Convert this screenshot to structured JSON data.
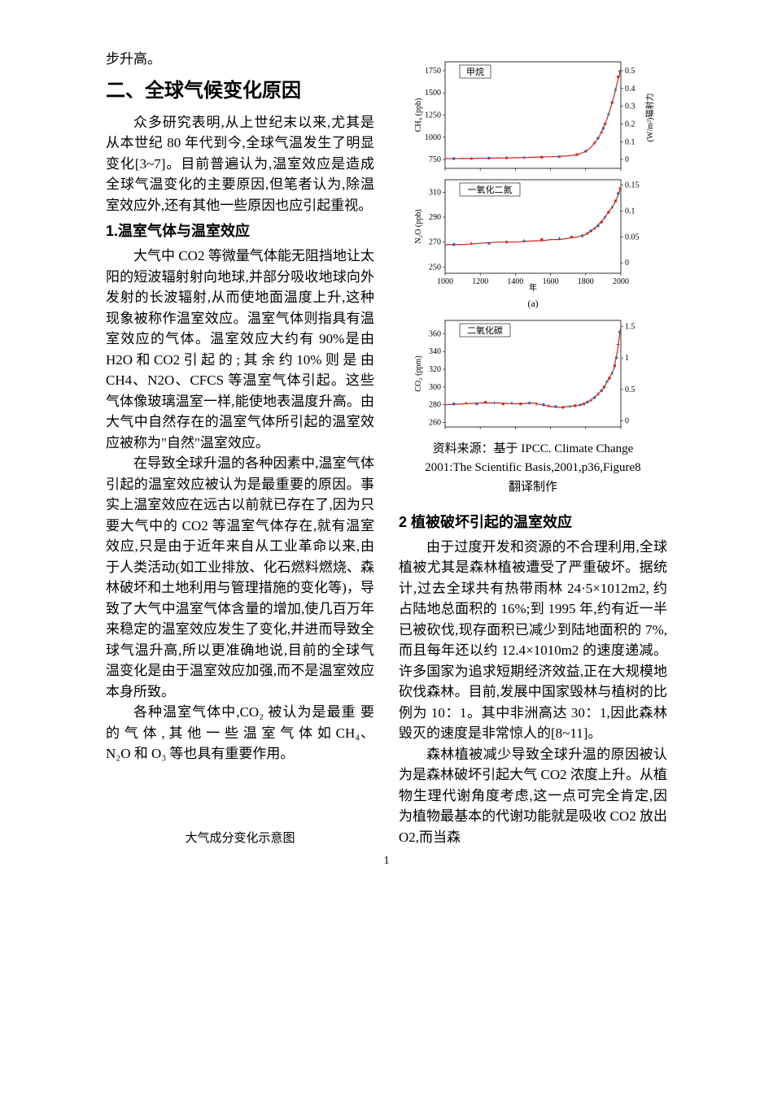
{
  "left_column": {
    "continuation": "步升高。",
    "section_title": "二、全球气候变化原因",
    "intro_para": "众多研究表明,从上世纪末以来,尤其是从本世纪 80 年代到今,全球气温发生了明显变化[3~7]。目前普遍认为,温室效应是造成全球气温变化的主要原因,但笔者认为,除温室效应外,还有其他一些原因也应引起重视。",
    "subsection1": "1.温室气体与温室效应",
    "para1a": "大气中 CO2 等微量气体能无阻挡地让太阳的短波辐射射向地球,并部分吸收地球向外发射的长波辐射,从而使地面温度上升,这种现象被称作温室效应。温室气体则指具有温室效应的气体。温室效应大约有 90%是由 H2O 和 CO2 引 起 的 ; 其 余 约 10% 则 是 由 CH4、N2O、CFCS 等温室气体引起。这些气体像玻璃温室一样,能使地表温度升高。由大气中自然存在的温室气体所引起的温室效应被称为\"自然\"温室效应。",
    "para1b": "在导致全球升温的各种因素中,温室气体引起的温室效应被认为是最重要的原因。事实上温室效应在远古以前就已存在了,因为只要大气中的 CO2 等温室气体存在,就有温室效应,只是由于近年来自从工业革命以来,由于人类活动(如工业排放、化石燃料燃烧、森林破坏和土地利用与管理措施的变化等)，导致了大气中温室气体含量的增加,使几百万年来稳定的温室效应发生了变化,并进而导致全球气温升高,所以更准确地说,目前的全球气温变化是由于温室效应加强,而不是温室效应本身所致。",
    "para1c": "各种温室气体中,CO₂ 被认为是最重 要 的 气 体 , 其 他 一 些 温 室 气 体 如 CH₄、N₂O 和 O₃ 等也具有重要作用。",
    "fig_caption_left": "大气成分变化示意图"
  },
  "right_column": {
    "fig_source_line1": "资料来源：基于 IPCC. Climate Change",
    "fig_source_line2": "2001:The Scientific Basis,2001,p36,Figure8",
    "fig_source_line3": "翻译制作",
    "subsection2": "2 植被破坏引起的温室效应",
    "para2a": "由于过度开发和资源的不合理利用,全球植被尤其是森林植被遭受了严重破坏。据统计,过去全球共有热带雨林 24·5×1012m2, 约占陆地总面积的 16%;到 1995 年,约有近一半已被砍伐,现存面积已减少到陆地面积的 7%,而且每年还以约 12.4×1010m2 的速度递减。许多国家为追求短期经济效益,正在大规模地砍伐森林。目前,发展中国家毁林与植树的比例为 10：1。其中非洲高达 30：1,因此森林毁灭的速度是非常惊人的[8~11]。",
    "para2b": "森林植被减少导致全球升温的原因被认为是森林破坏引起大气 CO2 浓度上升。从植物生理代谢角度考虑,这一点可完全肯定,因为植物最基本的代谢功能就是吸收 CO2 放出 O2,而当森"
  },
  "charts": {
    "x_domain": [
      1000,
      2000
    ],
    "x_ticks": [
      1000,
      1200,
      1400,
      1600,
      1800,
      2000
    ],
    "x_label": "年",
    "panel_a_label": "(a)",
    "methane": {
      "legend": "甲烷",
      "y_label": "CH₄ (ppb)",
      "y_ticks_left": [
        750,
        1000,
        1250,
        1500,
        1750
      ],
      "y_domain_left": [
        650,
        1850
      ],
      "y2_label": "辐射力",
      "y2_unit": "(W/m²)",
      "y_ticks_right": [
        0.0,
        0.1,
        0.2,
        0.3,
        0.4,
        0.5
      ],
      "y_domain_right": [
        -0.05,
        0.55
      ],
      "baseline": 760,
      "data": [
        [
          1000,
          760
        ],
        [
          1050,
          758
        ],
        [
          1100,
          762
        ],
        [
          1150,
          760
        ],
        [
          1200,
          765
        ],
        [
          1250,
          763
        ],
        [
          1300,
          768
        ],
        [
          1350,
          765
        ],
        [
          1400,
          770
        ],
        [
          1450,
          772
        ],
        [
          1500,
          775
        ],
        [
          1550,
          778
        ],
        [
          1600,
          780
        ],
        [
          1650,
          785
        ],
        [
          1700,
          790
        ],
        [
          1720,
          795
        ],
        [
          1740,
          800
        ],
        [
          1760,
          810
        ],
        [
          1780,
          825
        ],
        [
          1800,
          840
        ],
        [
          1820,
          870
        ],
        [
          1840,
          910
        ],
        [
          1860,
          960
        ],
        [
          1880,
          1020
        ],
        [
          1900,
          1100
        ],
        [
          1920,
          1200
        ],
        [
          1940,
          1320
        ],
        [
          1960,
          1450
        ],
        [
          1980,
          1620
        ],
        [
          2000,
          1760
        ]
      ],
      "markers": [
        [
          1050,
          760
        ],
        [
          1150,
          762
        ],
        [
          1250,
          765
        ],
        [
          1350,
          768
        ],
        [
          1450,
          770
        ],
        [
          1550,
          776
        ],
        [
          1650,
          783
        ],
        [
          1750,
          805
        ],
        [
          1800,
          842
        ],
        [
          1850,
          935
        ],
        [
          1870,
          990
        ],
        [
          1890,
          1060
        ],
        [
          1900,
          1100
        ],
        [
          1910,
          1150
        ],
        [
          1930,
          1260
        ],
        [
          1950,
          1390
        ],
        [
          1970,
          1540
        ],
        [
          1985,
          1680
        ],
        [
          1995,
          1740
        ]
      ]
    },
    "n2o": {
      "legend": "一氧化二氮",
      "y_label": "N₂O (ppb)",
      "y_ticks_left": [
        250,
        270,
        290,
        310
      ],
      "y_domain_left": [
        245,
        320
      ],
      "y_ticks_right": [
        0.0,
        0.05,
        0.1,
        0.15
      ],
      "y_domain_right": [
        -0.02,
        0.16
      ],
      "baseline": 268,
      "data": [
        [
          1000,
          268
        ],
        [
          1100,
          268
        ],
        [
          1200,
          269
        ],
        [
          1300,
          270
        ],
        [
          1400,
          270
        ],
        [
          1500,
          271
        ],
        [
          1550,
          271
        ],
        [
          1600,
          272
        ],
        [
          1650,
          272
        ],
        [
          1700,
          273
        ],
        [
          1750,
          274
        ],
        [
          1800,
          276
        ],
        [
          1820,
          278
        ],
        [
          1840,
          280
        ],
        [
          1860,
          282
        ],
        [
          1880,
          285
        ],
        [
          1900,
          288
        ],
        [
          1920,
          292
        ],
        [
          1940,
          296
        ],
        [
          1960,
          300
        ],
        [
          1980,
          306
        ],
        [
          2000,
          314
        ]
      ],
      "markers": [
        [
          1050,
          268
        ],
        [
          1150,
          269
        ],
        [
          1250,
          269
        ],
        [
          1350,
          270
        ],
        [
          1450,
          271
        ],
        [
          1550,
          272
        ],
        [
          1650,
          273
        ],
        [
          1720,
          274
        ],
        [
          1780,
          275
        ],
        [
          1810,
          277
        ],
        [
          1830,
          279
        ],
        [
          1850,
          281
        ],
        [
          1870,
          283
        ],
        [
          1890,
          286
        ],
        [
          1910,
          290
        ],
        [
          1930,
          294
        ],
        [
          1950,
          298
        ],
        [
          1970,
          303
        ],
        [
          1985,
          309
        ],
        [
          1995,
          313
        ]
      ]
    },
    "co2": {
      "legend": "二氧化碳",
      "y_label": "CO₂ (ppm)",
      "y_ticks_left": [
        260,
        280,
        300,
        320,
        340,
        360
      ],
      "y_domain_left": [
        255,
        375
      ],
      "y_ticks_right": [
        0.0,
        0.5,
        1.0,
        1.5
      ],
      "y_domain_right": [
        -0.1,
        1.6
      ],
      "baseline": 280,
      "data": [
        [
          1000,
          280
        ],
        [
          1100,
          281
        ],
        [
          1200,
          282
        ],
        [
          1300,
          282
        ],
        [
          1400,
          281
        ],
        [
          1500,
          282
        ],
        [
          1550,
          280
        ],
        [
          1600,
          278
        ],
        [
          1650,
          277
        ],
        [
          1700,
          278
        ],
        [
          1750,
          279
        ],
        [
          1800,
          282
        ],
        [
          1820,
          284
        ],
        [
          1840,
          287
        ],
        [
          1860,
          290
        ],
        [
          1880,
          294
        ],
        [
          1900,
          298
        ],
        [
          1920,
          305
        ],
        [
          1940,
          312
        ],
        [
          1960,
          320
        ],
        [
          1980,
          340
        ],
        [
          2000,
          368
        ]
      ],
      "markers": [
        [
          1050,
          281
        ],
        [
          1120,
          282
        ],
        [
          1180,
          281
        ],
        [
          1230,
          283
        ],
        [
          1280,
          282
        ],
        [
          1330,
          281
        ],
        [
          1380,
          282
        ],
        [
          1430,
          281
        ],
        [
          1480,
          282
        ],
        [
          1520,
          281
        ],
        [
          1560,
          280
        ],
        [
          1590,
          279
        ],
        [
          1630,
          278
        ],
        [
          1670,
          277
        ],
        [
          1710,
          278
        ],
        [
          1740,
          279
        ],
        [
          1770,
          280
        ],
        [
          1790,
          281
        ],
        [
          1810,
          283
        ],
        [
          1830,
          285
        ],
        [
          1850,
          288
        ],
        [
          1870,
          292
        ],
        [
          1890,
          296
        ],
        [
          1905,
          300
        ],
        [
          1920,
          306
        ],
        [
          1935,
          310
        ],
        [
          1950,
          316
        ],
        [
          1965,
          324
        ],
        [
          1975,
          333
        ],
        [
          1985,
          348
        ],
        [
          1995,
          362
        ]
      ]
    }
  },
  "page_number": "1",
  "colors": {
    "line": "#d02020",
    "line2": "#4060a0",
    "marker": "#d03020",
    "marker2": "#4060a0"
  }
}
